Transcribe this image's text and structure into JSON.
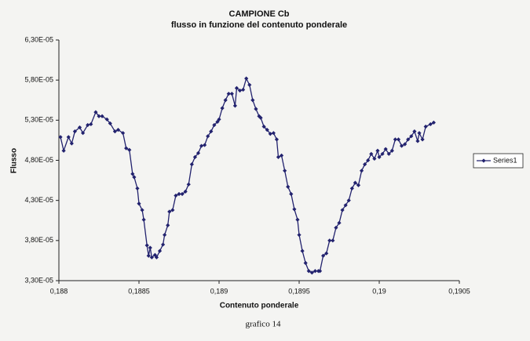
{
  "chart_data": {
    "type": "line",
    "title": "CAMPIONE Cb",
    "subtitle": "flusso in funzione del contenuto ponderale",
    "x_label": "Contenuto ponderale",
    "y_label": "Flusso",
    "caption": "grafico 14",
    "xlim": [
      0.188,
      0.1905
    ],
    "ylim": [
      3.3e-05,
      6.3e-05
    ],
    "xticks": [
      {
        "value": 0.188,
        "label": "0,188"
      },
      {
        "value": 0.1885,
        "label": "0,1885"
      },
      {
        "value": 0.189,
        "label": "0,189"
      },
      {
        "value": 0.1895,
        "label": "0,1895"
      },
      {
        "value": 0.19,
        "label": "0,19"
      },
      {
        "value": 0.1905,
        "label": "0,1905"
      }
    ],
    "yticks": [
      {
        "value": 3.3e-05,
        "label": "3,30E-05"
      },
      {
        "value": 3.8e-05,
        "label": "3,80E-05"
      },
      {
        "value": 4.3e-05,
        "label": "4,30E-05"
      },
      {
        "value": 4.8e-05,
        "label": "4,80E-05"
      },
      {
        "value": 5.3e-05,
        "label": "5,30E-05"
      },
      {
        "value": 5.8e-05,
        "label": "5,80E-05"
      },
      {
        "value": 6.3e-05,
        "label": "6,30E-05"
      }
    ],
    "grid": false,
    "legend": "right",
    "x": [
      0.18801,
      0.18803,
      0.18806,
      0.18808,
      0.1881,
      0.18813,
      0.18815,
      0.18818,
      0.1882,
      0.18823,
      0.18825,
      0.18827,
      0.1883,
      0.18832,
      0.18835,
      0.18837,
      0.1884,
      0.18842,
      0.18844,
      0.18846,
      0.18847,
      0.18849,
      0.1885,
      0.18852,
      0.18853,
      0.18855,
      0.18856,
      0.18857,
      0.18858,
      0.1886,
      0.18861,
      0.18863,
      0.18865,
      0.18866,
      0.18868,
      0.18869,
      0.18871,
      0.18873,
      0.18875,
      0.18877,
      0.18879,
      0.18881,
      0.18883,
      0.18885,
      0.18887,
      0.18889,
      0.18891,
      0.18893,
      0.18895,
      0.18897,
      0.18899,
      0.189,
      0.18902,
      0.18904,
      0.18906,
      0.18908,
      0.1891,
      0.18911,
      0.18913,
      0.18915,
      0.18917,
      0.18919,
      0.18921,
      0.18923,
      0.18925,
      0.18926,
      0.18928,
      0.1893,
      0.18932,
      0.18934,
      0.18936,
      0.18937,
      0.18939,
      0.18941,
      0.18943,
      0.18945,
      0.18947,
      0.18949,
      0.1895,
      0.18952,
      0.18954,
      0.18956,
      0.18958,
      0.1896,
      0.18962,
      0.18963,
      0.18965,
      0.18967,
      0.18969,
      0.18971,
      0.18973,
      0.18975,
      0.18977,
      0.18979,
      0.18981,
      0.18983,
      0.18985,
      0.18987,
      0.18989,
      0.18991,
      0.18993,
      0.18995,
      0.18997,
      0.18999,
      0.19,
      0.19002,
      0.19004,
      0.19006,
      0.19008,
      0.1901,
      0.19012,
      0.19014,
      0.19016,
      0.19018,
      0.1902,
      0.19022,
      0.19024,
      0.19025,
      0.19027,
      0.19029,
      0.19032,
      0.19034
    ],
    "series": [
      {
        "name": "Series1",
        "color": "#22226e",
        "values": [
          5.09e-05,
          4.92e-05,
          5.09e-05,
          5.01e-05,
          5.16e-05,
          5.21e-05,
          5.14e-05,
          5.24e-05,
          5.25e-05,
          5.4e-05,
          5.35e-05,
          5.35e-05,
          5.31e-05,
          5.26e-05,
          5.16e-05,
          5.18e-05,
          5.14e-05,
          4.95e-05,
          4.93e-05,
          4.63e-05,
          4.59e-05,
          4.45e-05,
          4.26e-05,
          4.18e-05,
          4.06e-05,
          3.74e-05,
          3.61e-05,
          3.71e-05,
          3.59e-05,
          3.62e-05,
          3.59e-05,
          3.67e-05,
          3.75e-05,
          3.87e-05,
          3.99e-05,
          4.16e-05,
          4.18e-05,
          4.36e-05,
          4.38e-05,
          4.38e-05,
          4.41e-05,
          4.5e-05,
          4.75e-05,
          4.84e-05,
          4.89e-05,
          4.98e-05,
          4.99e-05,
          5.1e-05,
          5.16e-05,
          5.24e-05,
          5.28e-05,
          5.31e-05,
          5.45e-05,
          5.55e-05,
          5.63e-05,
          5.63e-05,
          5.48e-05,
          5.7e-05,
          5.67e-05,
          5.68e-05,
          5.82e-05,
          5.74e-05,
          5.55e-05,
          5.44e-05,
          5.35e-05,
          5.33e-05,
          5.22e-05,
          5.18e-05,
          5.13e-05,
          5.14e-05,
          5.06e-05,
          4.84e-05,
          4.86e-05,
          4.67e-05,
          4.47e-05,
          4.38e-05,
          4.19e-05,
          4.06e-05,
          3.87e-05,
          3.67e-05,
          3.52e-05,
          3.42e-05,
          3.4e-05,
          3.42e-05,
          3.42e-05,
          3.42e-05,
          3.61e-05,
          3.64e-05,
          3.8e-05,
          3.8e-05,
          3.96e-05,
          4.02e-05,
          4.18e-05,
          4.24e-05,
          4.3e-05,
          4.45e-05,
          4.52e-05,
          4.49e-05,
          4.67e-05,
          4.75e-05,
          4.8e-05,
          4.88e-05,
          4.82e-05,
          4.92e-05,
          4.84e-05,
          4.88e-05,
          4.94e-05,
          4.88e-05,
          4.92e-05,
          5.06e-05,
          5.06e-05,
          4.98e-05,
          5e-05,
          5.06e-05,
          5.1e-05,
          5.16e-05,
          5.04e-05,
          5.14e-05,
          5.06e-05,
          5.22e-05,
          5.25e-05,
          5.27e-05
        ]
      }
    ]
  }
}
